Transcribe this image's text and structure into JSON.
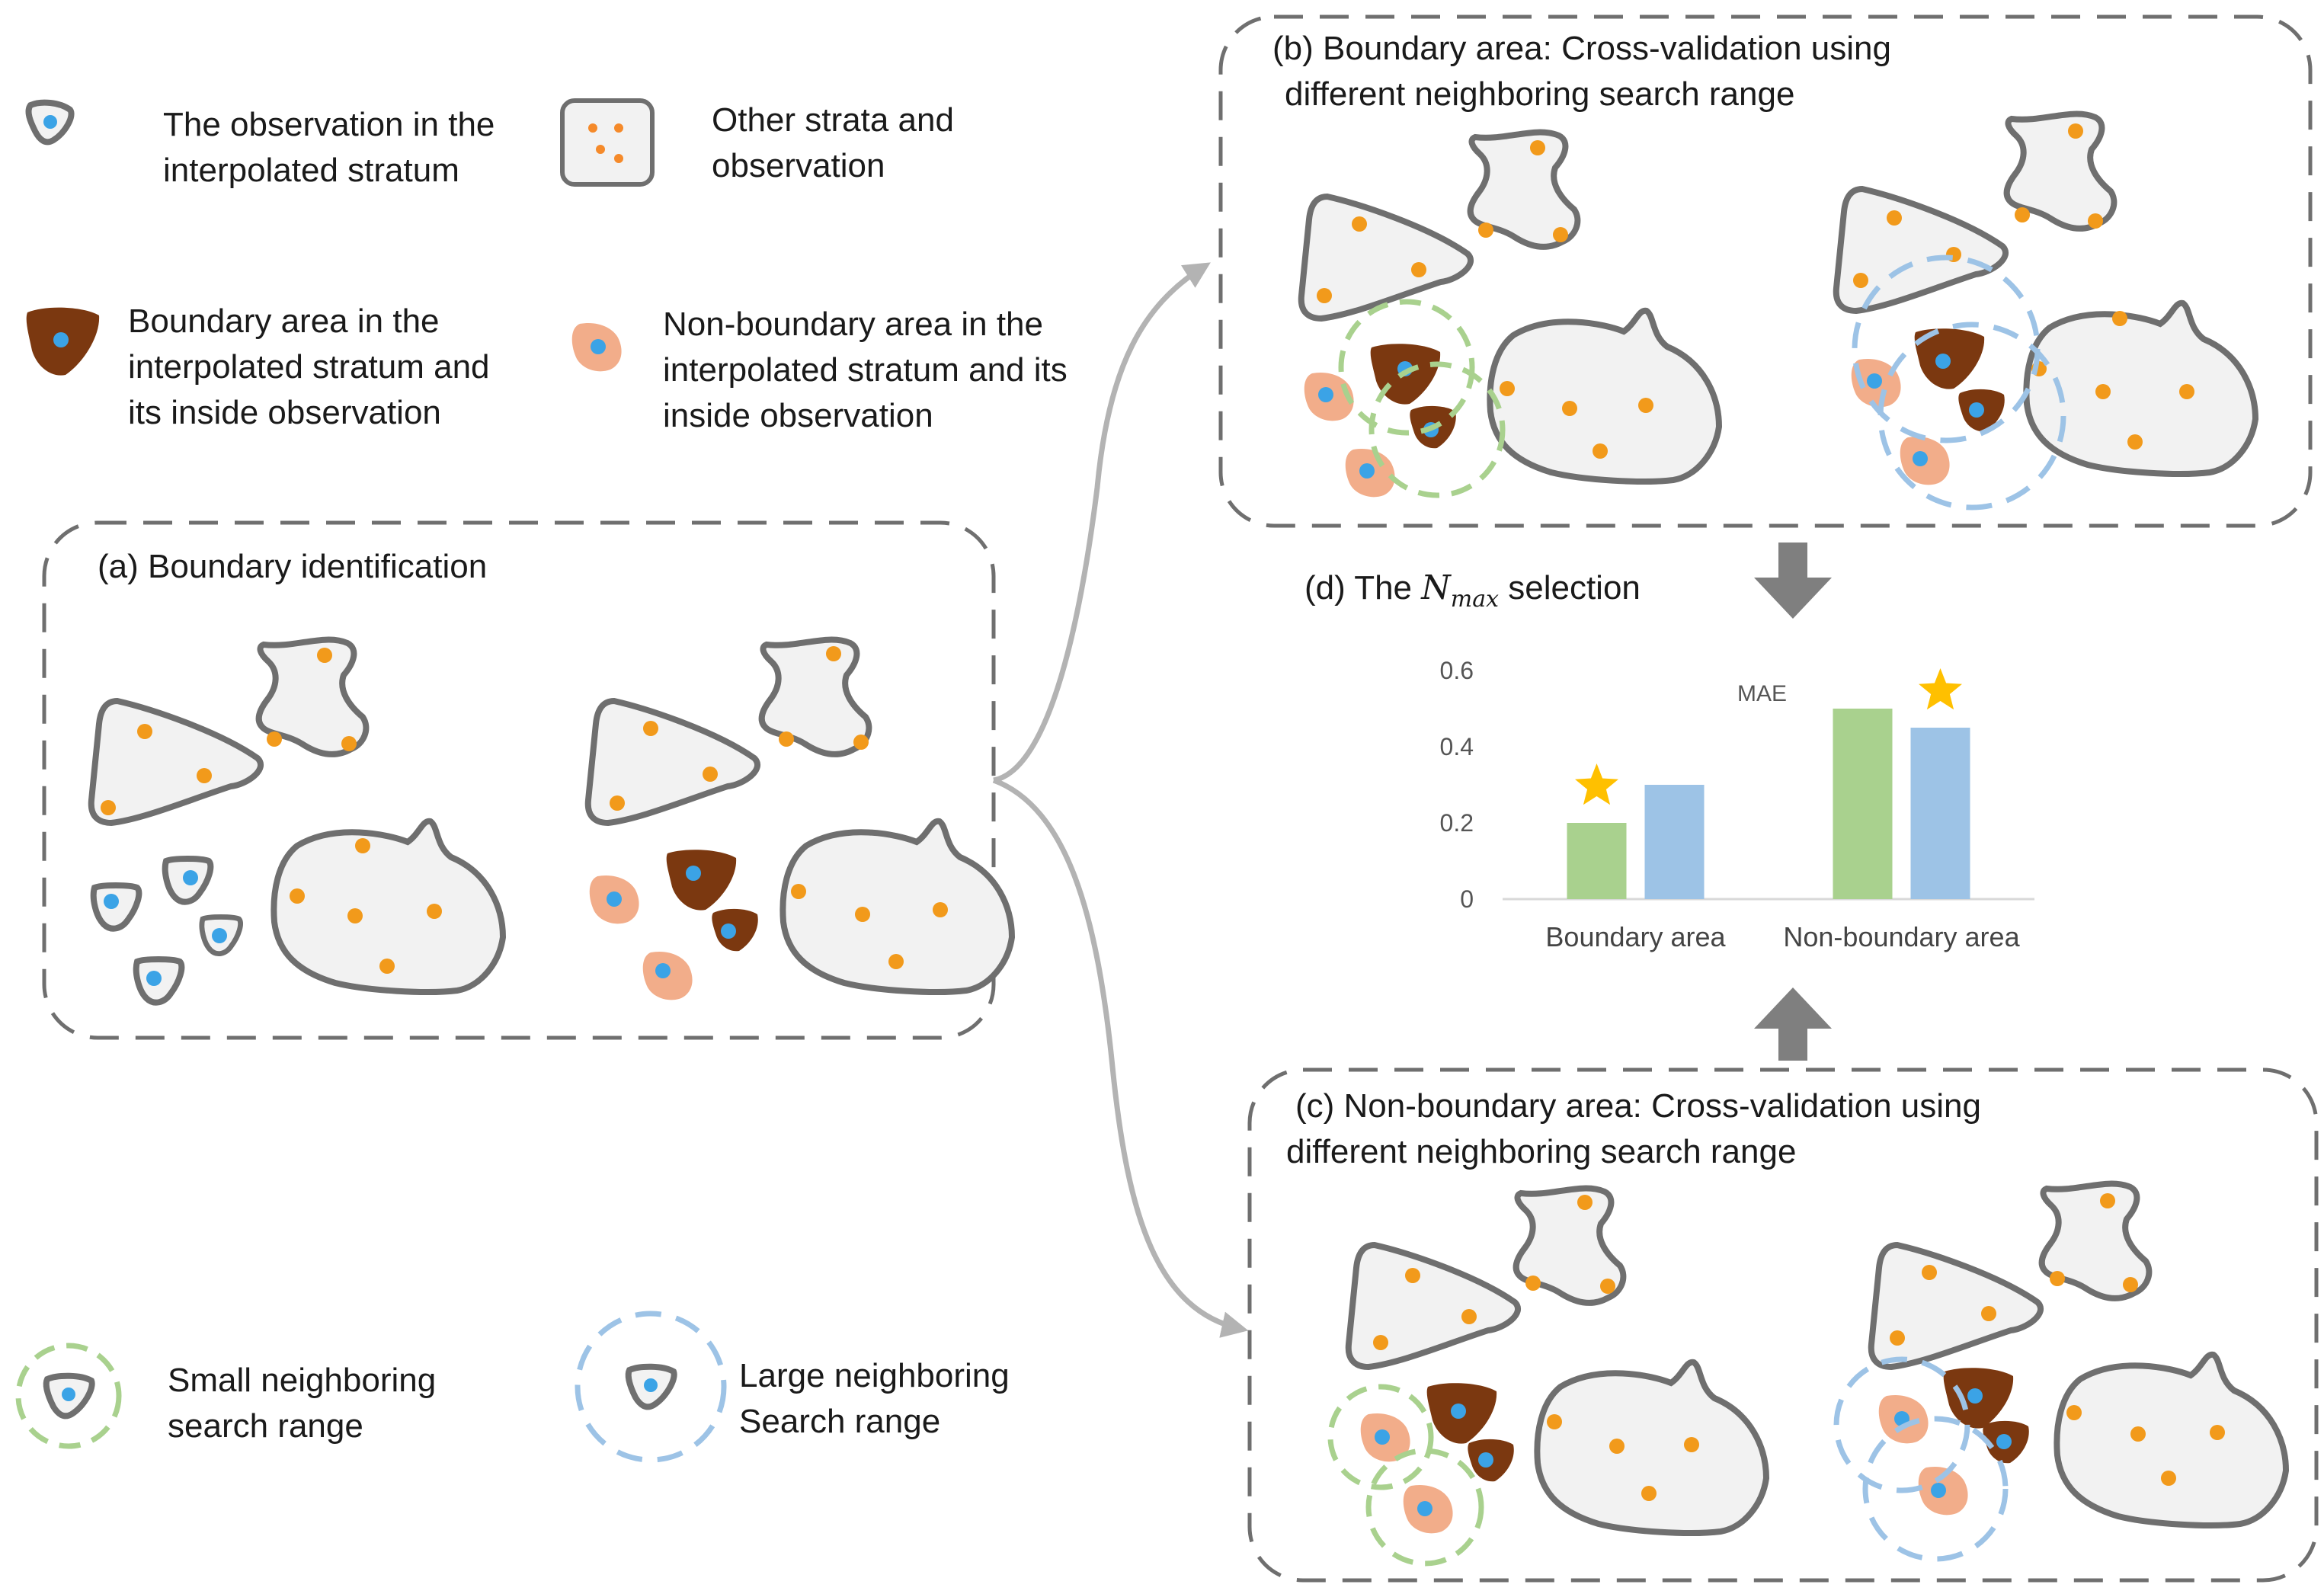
{
  "legend": {
    "observation_interpolated": [
      "The observation in the",
      "interpolated stratum"
    ],
    "other_strata": [
      "Other strata and",
      "observation"
    ],
    "boundary_area": [
      "Boundary area in the",
      "interpolated stratum and",
      "its inside observation"
    ],
    "non_boundary_area": [
      "Non-boundary area in the",
      "interpolated stratum and its",
      "inside observation"
    ],
    "small_range": [
      "Small neighboring",
      "search range"
    ],
    "large_range": [
      "Large neighboring",
      "Search range"
    ]
  },
  "panels": {
    "a_title": "(a) Boundary identification",
    "b_title": [
      "(b) Boundary area: Cross-validation using",
      "different neighboring search range"
    ],
    "c_title": [
      "(c) Non-boundary area: Cross-validation using",
      "different neighboring search range"
    ],
    "d_title_prefix": "(d) The ",
    "d_title_var": "N",
    "d_title_sub": "max",
    "d_title_suffix": " selection"
  },
  "colors": {
    "stratum_fill": "#f2f2f2",
    "stratum_stroke": "#6f6f6f",
    "orange_point": "#f29a1b",
    "blue_point": "#3ba3e6",
    "boundary_fill": "#7b3810",
    "non_boundary_fill": "#f2ad8a",
    "small_range": "#a9d18e",
    "large_range": "#9dc3e6",
    "bar_green": "#a9d18e",
    "bar_blue": "#9dc3e6",
    "star": "#ffc000"
  },
  "chart_data": {
    "type": "bar",
    "title": "",
    "series_label": "MAE",
    "categories": [
      "Boundary area",
      "Non-boundary area"
    ],
    "series": [
      {
        "values": [
          0.2,
          0.5
        ],
        "color": "#a9d18e"
      },
      {
        "values": [
          0.3,
          0.45
        ],
        "color": "#9dc3e6"
      }
    ],
    "ylim": [
      0,
      0.6
    ],
    "yticks": [
      "0",
      "0.2",
      "0.4",
      "0.6"
    ],
    "stars": [
      {
        "category": 0,
        "series": 0
      },
      {
        "category": 1,
        "series": 1
      }
    ]
  }
}
